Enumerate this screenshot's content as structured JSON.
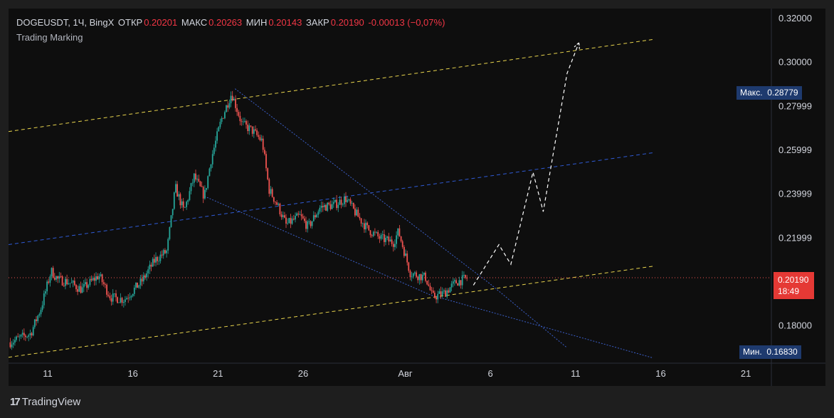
{
  "header": {
    "symbol": "DOGEUSDT, 1Ч, BingX",
    "open_label": "ОТКР",
    "open_value": "0.20201",
    "high_label": "МАКС",
    "high_value": "0.20263",
    "low_label": "МИН",
    "low_value": "0.20143",
    "close_label": "ЗАКР",
    "close_value": "0.20190",
    "change": "-0.00013 (−0,07%)",
    "indicator": "Trading Marking"
  },
  "price_tags": {
    "max_label": "Макс.",
    "max_value": "0.28779",
    "min_label": "Мин.",
    "min_value": "0.16830",
    "last_value": "0.20190",
    "countdown": "18:49"
  },
  "footer": {
    "brand": "TradingView",
    "logo_glyph": "17"
  },
  "colors": {
    "background": "#0e0e0e",
    "up": "#26a69a",
    "down": "#ef5350",
    "channel_yellow": "#e8d44d",
    "channel_blue": "#2f5bd6",
    "wedge": "#3b5fc9",
    "projection": "#ffffff",
    "tag_blue": "#1e3a6e",
    "tag_red": "#e53935"
  },
  "chart_data": {
    "type": "candlestick",
    "y_ticks": [
      "0.32000",
      "0.30000",
      "0.27999",
      "0.25999",
      "0.23999",
      "0.21999",
      "0.18000"
    ],
    "ylim": [
      0.163,
      0.3245
    ],
    "x_ticks": [
      "11",
      "16",
      "21",
      "26",
      "Авг",
      "6",
      "11",
      "16",
      "21"
    ],
    "x_tick_days": [
      11,
      16,
      21,
      26,
      32,
      37,
      42,
      47,
      52
    ],
    "xlim_days": [
      8.7,
      53.5
    ],
    "price_path": [
      [
        8.8,
        0.1725
      ],
      [
        10.0,
        0.1765
      ],
      [
        10.6,
        0.188
      ],
      [
        11.2,
        0.205
      ],
      [
        11.6,
        0.201
      ],
      [
        12.2,
        0.2
      ],
      [
        13.0,
        0.1965
      ],
      [
        14.0,
        0.203
      ],
      [
        14.7,
        0.193
      ],
      [
        15.5,
        0.192
      ],
      [
        16.5,
        0.2
      ],
      [
        17.3,
        0.21
      ],
      [
        18.0,
        0.214
      ],
      [
        18.5,
        0.243
      ],
      [
        19.0,
        0.232
      ],
      [
        19.6,
        0.248
      ],
      [
        20.2,
        0.239
      ],
      [
        20.6,
        0.256
      ],
      [
        21.2,
        0.274
      ],
      [
        21.8,
        0.286
      ],
      [
        22.4,
        0.272
      ],
      [
        23.0,
        0.269
      ],
      [
        23.6,
        0.264
      ],
      [
        24.0,
        0.242
      ],
      [
        24.5,
        0.235
      ],
      [
        25.0,
        0.226
      ],
      [
        25.8,
        0.23
      ],
      [
        26.3,
        0.225
      ],
      [
        27.0,
        0.234
      ],
      [
        27.8,
        0.235
      ],
      [
        28.5,
        0.238
      ],
      [
        29.2,
        0.23
      ],
      [
        29.8,
        0.224
      ],
      [
        30.5,
        0.22
      ],
      [
        31.3,
        0.218
      ],
      [
        31.6,
        0.223
      ],
      [
        32.3,
        0.204
      ],
      [
        33.2,
        0.202
      ],
      [
        33.6,
        0.193
      ],
      [
        34.3,
        0.195
      ],
      [
        35.0,
        0.2
      ],
      [
        35.7,
        0.2019
      ]
    ],
    "channel_upper": [
      [
        8.7,
        0.2685
      ],
      [
        46.6,
        0.3105
      ]
    ],
    "channel_mid": [
      [
        8.7,
        0.217
      ],
      [
        46.6,
        0.2589
      ]
    ],
    "channel_lower": [
      [
        8.7,
        0.1657
      ],
      [
        46.6,
        0.2072
      ]
    ],
    "wedge_upper": [
      [
        22.0,
        0.288
      ],
      [
        37.0,
        0.199
      ],
      [
        41.5,
        0.17
      ]
    ],
    "wedge_lower": [
      [
        20.2,
        0.239
      ],
      [
        33.5,
        0.194
      ],
      [
        46.5,
        0.1655
      ]
    ],
    "projection_path": [
      [
        36.0,
        0.1985
      ],
      [
        37.5,
        0.217
      ],
      [
        38.2,
        0.208
      ],
      [
        39.5,
        0.25
      ],
      [
        40.1,
        0.232
      ],
      [
        41.5,
        0.295
      ],
      [
        42.2,
        0.309
      ]
    ],
    "last_price": 0.2019
  }
}
